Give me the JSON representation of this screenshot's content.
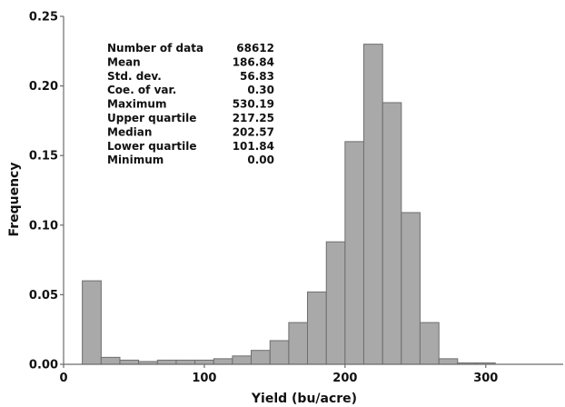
{
  "chart_data": {
    "type": "bar",
    "title": "",
    "xlabel": "Yield (bu/acre)",
    "ylabel": "Frequency",
    "xlim": [
      0,
      355
    ],
    "ylim": [
      0,
      0.25
    ],
    "grid": false,
    "x_ticks": [
      {
        "value": 0,
        "label": "0"
      },
      {
        "value": 100,
        "label": "100"
      },
      {
        "value": 200,
        "label": "200"
      },
      {
        "value": 300,
        "label": "300"
      }
    ],
    "y_ticks": [
      {
        "value": 0.0,
        "label": "0.00"
      },
      {
        "value": 0.05,
        "label": "0.05"
      },
      {
        "value": 0.1,
        "label": "0.10"
      },
      {
        "value": 0.15,
        "label": "0.15"
      },
      {
        "value": 0.2,
        "label": "0.20"
      },
      {
        "value": 0.25,
        "label": "0.25"
      }
    ],
    "bin_width": 13.333,
    "bins": [
      {
        "x0": 13.3,
        "x1": 26.7,
        "value": 0.06
      },
      {
        "x0": 26.7,
        "x1": 40.0,
        "value": 0.005
      },
      {
        "x0": 40.0,
        "x1": 53.3,
        "value": 0.003
      },
      {
        "x0": 53.3,
        "x1": 66.7,
        "value": 0.002
      },
      {
        "x0": 66.7,
        "x1": 80.0,
        "value": 0.003
      },
      {
        "x0": 80.0,
        "x1": 93.3,
        "value": 0.003
      },
      {
        "x0": 93.3,
        "x1": 106.7,
        "value": 0.003
      },
      {
        "x0": 106.7,
        "x1": 120.0,
        "value": 0.004
      },
      {
        "x0": 120.0,
        "x1": 133.3,
        "value": 0.006
      },
      {
        "x0": 133.3,
        "x1": 146.7,
        "value": 0.01
      },
      {
        "x0": 146.7,
        "x1": 160.0,
        "value": 0.017
      },
      {
        "x0": 160.0,
        "x1": 173.3,
        "value": 0.03
      },
      {
        "x0": 173.3,
        "x1": 186.7,
        "value": 0.052
      },
      {
        "x0": 186.7,
        "x1": 200.0,
        "value": 0.088
      },
      {
        "x0": 200.0,
        "x1": 213.3,
        "value": 0.16
      },
      {
        "x0": 213.3,
        "x1": 226.7,
        "value": 0.23
      },
      {
        "x0": 226.7,
        "x1": 240.0,
        "value": 0.188
      },
      {
        "x0": 240.0,
        "x1": 253.3,
        "value": 0.109
      },
      {
        "x0": 253.3,
        "x1": 266.7,
        "value": 0.03
      },
      {
        "x0": 266.7,
        "x1": 280.0,
        "value": 0.004
      },
      {
        "x0": 280.0,
        "x1": 293.3,
        "value": 0.001
      },
      {
        "x0": 293.3,
        "x1": 306.7,
        "value": 0.001
      }
    ],
    "statistics": [
      {
        "label": "Number of data",
        "value": "68612"
      },
      {
        "label": "Mean",
        "value": "186.84"
      },
      {
        "label": "Std. dev.",
        "value": "56.83"
      },
      {
        "label": "Coe. of var.",
        "value": "0.30"
      },
      {
        "label": "Maximum",
        "value": "530.19"
      },
      {
        "label": "Upper quartile",
        "value": "217.25"
      },
      {
        "label": "Median",
        "value": "202.57"
      },
      {
        "label": "Lower quartile",
        "value": "101.84"
      },
      {
        "label": "Minimum",
        "value": "0.00"
      }
    ],
    "colors": {
      "bar_fill": "#a9a9a9",
      "bar_stroke": "#6e6e6e",
      "axis": "#6b6b6b",
      "text": "#111111"
    }
  }
}
